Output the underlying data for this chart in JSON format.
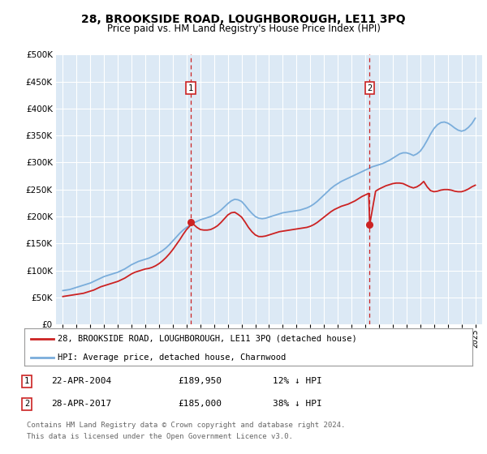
{
  "title": "28, BROOKSIDE ROAD, LOUGHBOROUGH, LE11 3PQ",
  "subtitle": "Price paid vs. HM Land Registry's House Price Index (HPI)",
  "ylim": [
    0,
    500000
  ],
  "yticks": [
    0,
    50000,
    100000,
    150000,
    200000,
    250000,
    300000,
    350000,
    400000,
    450000,
    500000
  ],
  "ytick_labels": [
    "£0",
    "£50K",
    "£100K",
    "£150K",
    "£200K",
    "£250K",
    "£300K",
    "£350K",
    "£400K",
    "£450K",
    "£500K"
  ],
  "xlim": [
    1994.5,
    2025.5
  ],
  "xticks": [
    1995,
    1996,
    1997,
    1998,
    1999,
    2000,
    2001,
    2002,
    2003,
    2004,
    2005,
    2006,
    2007,
    2008,
    2009,
    2010,
    2011,
    2012,
    2013,
    2014,
    2015,
    2016,
    2017,
    2018,
    2019,
    2020,
    2021,
    2022,
    2023,
    2024,
    2025
  ],
  "bg_color": "#dce9f5",
  "transaction1_x": 2004.31,
  "transaction1_y": 189950,
  "transaction2_x": 2017.32,
  "transaction2_y": 185000,
  "legend_label_red": "28, BROOKSIDE ROAD, LOUGHBOROUGH, LE11 3PQ (detached house)",
  "legend_label_blue": "HPI: Average price, detached house, Charnwood",
  "footnote_line1": "Contains HM Land Registry data © Crown copyright and database right 2024.",
  "footnote_line2": "This data is licensed under the Open Government Licence v3.0.",
  "table_rows": [
    {
      "num": "1",
      "date": "22-APR-2004",
      "price": "£189,950",
      "hpi": "12% ↓ HPI"
    },
    {
      "num": "2",
      "date": "28-APR-2017",
      "price": "£185,000",
      "hpi": "38% ↓ HPI"
    }
  ],
  "hpi_years": [
    1995,
    1995.25,
    1995.5,
    1995.75,
    1996,
    1996.25,
    1996.5,
    1996.75,
    1997,
    1997.25,
    1997.5,
    1997.75,
    1998,
    1998.25,
    1998.5,
    1998.75,
    1999,
    1999.25,
    1999.5,
    1999.75,
    2000,
    2000.25,
    2000.5,
    2000.75,
    2001,
    2001.25,
    2001.5,
    2001.75,
    2002,
    2002.25,
    2002.5,
    2002.75,
    2003,
    2003.25,
    2003.5,
    2003.75,
    2004,
    2004.25,
    2004.5,
    2004.75,
    2005,
    2005.25,
    2005.5,
    2005.75,
    2006,
    2006.25,
    2006.5,
    2006.75,
    2007,
    2007.25,
    2007.5,
    2007.75,
    2008,
    2008.25,
    2008.5,
    2008.75,
    2009,
    2009.25,
    2009.5,
    2009.75,
    2010,
    2010.25,
    2010.5,
    2010.75,
    2011,
    2011.25,
    2011.5,
    2011.75,
    2012,
    2012.25,
    2012.5,
    2012.75,
    2013,
    2013.25,
    2013.5,
    2013.75,
    2014,
    2014.25,
    2014.5,
    2014.75,
    2015,
    2015.25,
    2015.5,
    2015.75,
    2016,
    2016.25,
    2016.5,
    2016.75,
    2017,
    2017.25,
    2017.5,
    2017.75,
    2018,
    2018.25,
    2018.5,
    2018.75,
    2019,
    2019.25,
    2019.5,
    2019.75,
    2020,
    2020.25,
    2020.5,
    2020.75,
    2021,
    2021.25,
    2021.5,
    2021.75,
    2022,
    2022.25,
    2022.5,
    2022.75,
    2023,
    2023.25,
    2023.5,
    2023.75,
    2024,
    2024.25,
    2024.5,
    2024.75,
    2025
  ],
  "hpi_values": [
    63000,
    64000,
    65000,
    67000,
    69000,
    71000,
    73000,
    75000,
    77000,
    80000,
    83000,
    86000,
    89000,
    91000,
    93000,
    95000,
    97000,
    100000,
    103000,
    107000,
    111000,
    114000,
    117000,
    119000,
    121000,
    123000,
    126000,
    129000,
    133000,
    137000,
    142000,
    148000,
    155000,
    162000,
    169000,
    175000,
    180000,
    184000,
    188000,
    191000,
    194000,
    196000,
    198000,
    200000,
    203000,
    207000,
    212000,
    218000,
    224000,
    229000,
    232000,
    231000,
    228000,
    221000,
    213000,
    206000,
    200000,
    197000,
    196000,
    197000,
    199000,
    201000,
    203000,
    205000,
    207000,
    208000,
    209000,
    210000,
    211000,
    212000,
    214000,
    216000,
    219000,
    223000,
    228000,
    234000,
    240000,
    246000,
    252000,
    257000,
    261000,
    265000,
    268000,
    271000,
    274000,
    277000,
    280000,
    283000,
    286000,
    289000,
    292000,
    294000,
    296000,
    298000,
    301000,
    304000,
    308000,
    312000,
    316000,
    318000,
    318000,
    316000,
    313000,
    316000,
    321000,
    330000,
    341000,
    353000,
    363000,
    370000,
    374000,
    375000,
    373000,
    369000,
    364000,
    360000,
    358000,
    360000,
    365000,
    372000,
    382000
  ],
  "red_years": [
    1995,
    1995.25,
    1995.5,
    1995.75,
    1996,
    1996.25,
    1996.5,
    1996.75,
    1997,
    1997.25,
    1997.5,
    1997.75,
    1998,
    1998.25,
    1998.5,
    1998.75,
    1999,
    1999.25,
    1999.5,
    1999.75,
    2000,
    2000.25,
    2000.5,
    2000.75,
    2001,
    2001.25,
    2001.5,
    2001.75,
    2002,
    2002.25,
    2002.5,
    2002.75,
    2003,
    2003.25,
    2003.5,
    2003.75,
    2004,
    2004.25,
    2004.31,
    2004.75,
    2005,
    2005.25,
    2005.5,
    2005.75,
    2006,
    2006.25,
    2006.5,
    2006.75,
    2007,
    2007.25,
    2007.5,
    2007.75,
    2008,
    2008.25,
    2008.5,
    2008.75,
    2009,
    2009.25,
    2009.5,
    2009.75,
    2010,
    2010.25,
    2010.5,
    2010.75,
    2011,
    2011.25,
    2011.5,
    2011.75,
    2012,
    2012.25,
    2012.5,
    2012.75,
    2013,
    2013.25,
    2013.5,
    2013.75,
    2014,
    2014.25,
    2014.5,
    2014.75,
    2015,
    2015.25,
    2015.5,
    2015.75,
    2016,
    2016.25,
    2016.5,
    2016.75,
    2017,
    2017.25,
    2017.32,
    2017.75,
    2018,
    2018.25,
    2018.5,
    2018.75,
    2019,
    2019.25,
    2019.5,
    2019.75,
    2020,
    2020.25,
    2020.5,
    2020.75,
    2021,
    2021.25,
    2021.5,
    2021.75,
    2022,
    2022.25,
    2022.5,
    2022.75,
    2023,
    2023.25,
    2023.5,
    2023.75,
    2024,
    2024.25,
    2024.5,
    2024.75,
    2025
  ],
  "red_values": [
    52000,
    53000,
    54000,
    55000,
    56000,
    57000,
    58000,
    60000,
    62000,
    64000,
    67000,
    70000,
    72000,
    74000,
    76000,
    78000,
    80000,
    83000,
    86000,
    90000,
    94000,
    97000,
    99000,
    101000,
    103000,
    104000,
    106000,
    109000,
    113000,
    118000,
    124000,
    131000,
    139000,
    148000,
    157000,
    167000,
    176000,
    183000,
    189950,
    180000,
    176000,
    175000,
    175000,
    176000,
    179000,
    183000,
    189000,
    196000,
    203000,
    207000,
    208000,
    204000,
    199000,
    190000,
    180000,
    172000,
    166000,
    163000,
    163000,
    164000,
    166000,
    168000,
    170000,
    172000,
    173000,
    174000,
    175000,
    176000,
    177000,
    178000,
    179000,
    180000,
    182000,
    185000,
    189000,
    194000,
    199000,
    204000,
    209000,
    213000,
    216000,
    219000,
    221000,
    223000,
    226000,
    229000,
    233000,
    237000,
    240000,
    243000,
    185000,
    247000,
    251000,
    254000,
    257000,
    259000,
    261000,
    262000,
    262000,
    261000,
    258000,
    255000,
    253000,
    255000,
    259000,
    265000,
    255000,
    248000,
    246000,
    247000,
    249000,
    250000,
    250000,
    249000,
    247000,
    246000,
    246000,
    248000,
    251000,
    255000,
    258000
  ]
}
